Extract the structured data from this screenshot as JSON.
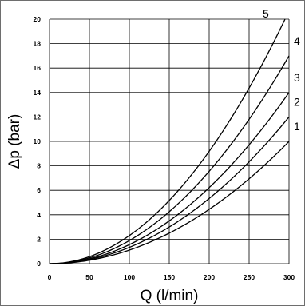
{
  "chart_data": {
    "type": "line",
    "xlabel": "Q (l/min)",
    "ylabel": "Δp (bar)",
    "xlim": [
      0,
      300
    ],
    "ylim": [
      0,
      20
    ],
    "x_ticks": [
      0,
      50,
      100,
      150,
      200,
      250,
      300
    ],
    "y_ticks": [
      0,
      2,
      4,
      6,
      8,
      10,
      12,
      14,
      16,
      18,
      20
    ],
    "grid": true,
    "series": [
      {
        "name": "1",
        "x": [
          0,
          50,
          100,
          150,
          200,
          250,
          300
        ],
        "y": [
          0,
          0.28,
          1.11,
          2.5,
          4.44,
          6.94,
          10.0
        ]
      },
      {
        "name": "2",
        "x": [
          0,
          50,
          100,
          150,
          200,
          250,
          300
        ],
        "y": [
          0,
          0.33,
          1.33,
          3.0,
          5.33,
          8.33,
          12.0
        ]
      },
      {
        "name": "3",
        "x": [
          0,
          50,
          100,
          150,
          200,
          250,
          300
        ],
        "y": [
          0,
          0.39,
          1.56,
          3.5,
          6.22,
          9.72,
          14.0
        ]
      },
      {
        "name": "4",
        "x": [
          0,
          50,
          100,
          150,
          200,
          250,
          300
        ],
        "y": [
          0,
          0.47,
          1.89,
          4.25,
          7.56,
          11.81,
          17.0
        ]
      },
      {
        "name": "5",
        "x": [
          0,
          50,
          100,
          150,
          200,
          250,
          295
        ],
        "y": [
          0,
          0.57,
          2.3,
          5.17,
          9.19,
          14.36,
          20.0
        ]
      }
    ]
  }
}
